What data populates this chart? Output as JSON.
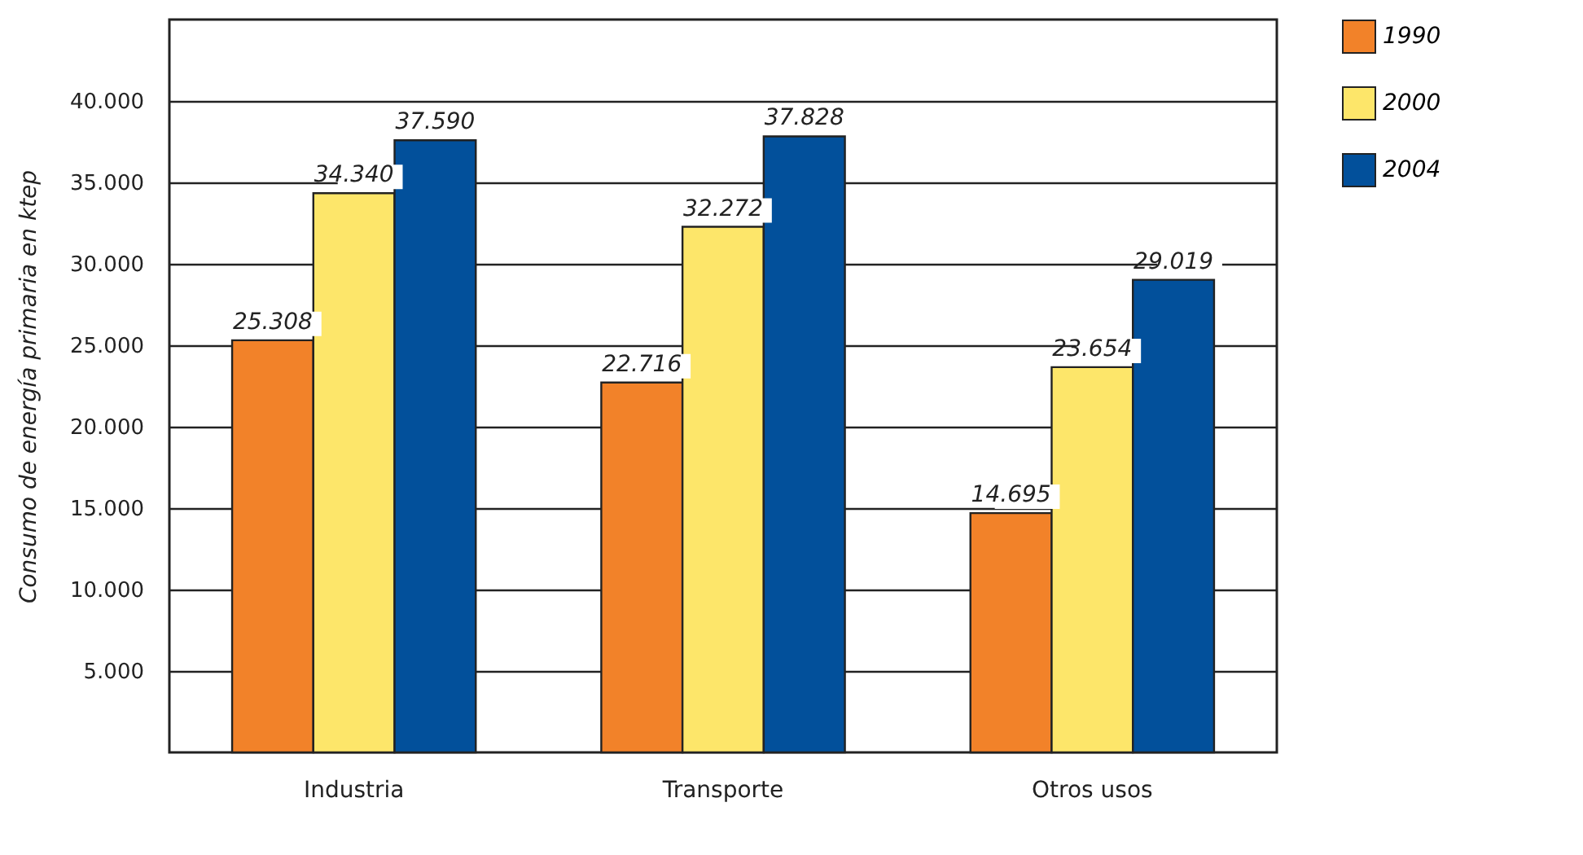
{
  "chart_data": {
    "type": "bar",
    "ylabel": "Consumo de energía primaria en ktep",
    "categories": [
      "Industria",
      "Transporte",
      "Otros usos"
    ],
    "series": [
      {
        "name": "1990",
        "color": "#f28229",
        "values": [
          25308,
          22716,
          14695
        ],
        "value_labels": [
          "25.308",
          "22.716",
          "14.695"
        ]
      },
      {
        "name": "2000",
        "color": "#fde66a",
        "values": [
          34340,
          32272,
          23654
        ],
        "value_labels": [
          "34.340",
          "32.272",
          "23.654"
        ]
      },
      {
        "name": "2004",
        "color": "#02509b",
        "values": [
          37590,
          37828,
          29019
        ],
        "value_labels": [
          "37.590",
          "37.828",
          "29.019"
        ]
      }
    ],
    "ylim": [
      0,
      45000
    ],
    "yticks": [
      {
        "value": 5000,
        "label": "5.000"
      },
      {
        "value": 10000,
        "label": "10.000"
      },
      {
        "value": 15000,
        "label": "15.000"
      },
      {
        "value": 20000,
        "label": "20.000"
      },
      {
        "value": 25000,
        "label": "25.000"
      },
      {
        "value": 30000,
        "label": "30.000"
      },
      {
        "value": 35000,
        "label": "35.000"
      },
      {
        "value": 40000,
        "label": "40.000"
      }
    ],
    "grid": "y",
    "legend": "right"
  }
}
